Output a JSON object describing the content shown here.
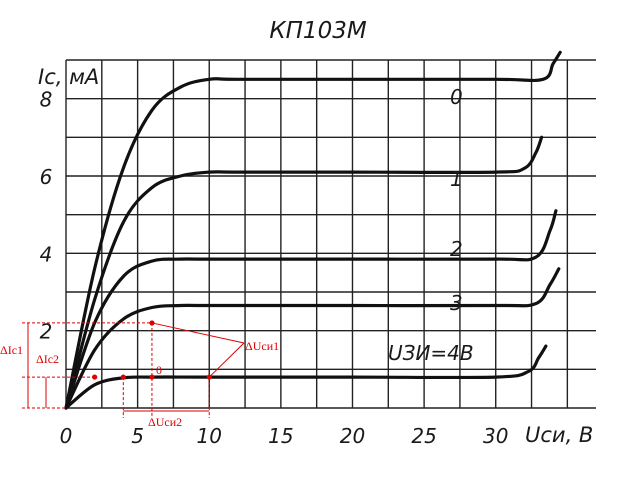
{
  "chart_data": {
    "type": "line",
    "title": "КП103М",
    "ylabel": "Iс, мА",
    "xlabel": "Uси, В",
    "xlim": [
      0,
      37
    ],
    "ylim": [
      0,
      9
    ],
    "x_ticks": [
      0,
      5,
      10,
      15,
      20,
      25,
      30
    ],
    "y_ticks": [
      2,
      4,
      6,
      8
    ],
    "grid": true,
    "series": [
      {
        "name": "0",
        "x": [
          0,
          2,
          4,
          6,
          8,
          10,
          12,
          20,
          30,
          33.3,
          34,
          34.5
        ],
        "values": [
          0,
          3.6,
          6.2,
          7.7,
          8.3,
          8.5,
          8.5,
          8.5,
          8.5,
          8.5,
          8.9,
          9.2
        ]
      },
      {
        "name": "1",
        "x": [
          0,
          2,
          4,
          6,
          8,
          10,
          12,
          20,
          30,
          32,
          32.8,
          33.2
        ],
        "values": [
          0,
          2.8,
          4.8,
          5.7,
          6.0,
          6.1,
          6.1,
          6.1,
          6.1,
          6.2,
          6.6,
          7.0
        ]
      },
      {
        "name": "2",
        "x": [
          0,
          2,
          4,
          6,
          8,
          10,
          20,
          30,
          32.8,
          33.8,
          34.2
        ],
        "values": [
          0,
          2.2,
          3.4,
          3.8,
          3.85,
          3.85,
          3.85,
          3.85,
          3.9,
          4.6,
          5.1
        ]
      },
      {
        "name": "3",
        "x": [
          0,
          2,
          4,
          6,
          8,
          10,
          20,
          30,
          32.8,
          33.8,
          34.4
        ],
        "values": [
          0,
          1.5,
          2.3,
          2.6,
          2.65,
          2.65,
          2.65,
          2.65,
          2.7,
          3.2,
          3.6
        ]
      },
      {
        "name": "4",
        "x": [
          0,
          2,
          4,
          6,
          10,
          20,
          30,
          32.3,
          33,
          33.5
        ],
        "values": [
          0,
          0.6,
          0.78,
          0.8,
          0.8,
          0.8,
          0.8,
          0.95,
          1.3,
          1.6
        ]
      }
    ],
    "curve_labels": [
      "0",
      "1",
      "2",
      "3",
      "UЗИ=4В"
    ],
    "annotations": {
      "labels": [
        "ΔIc1",
        "ΔIc2",
        "ΔUси1",
        "ΔUси2",
        "0"
      ],
      "color": "#e00000",
      "points": [
        [
          2,
          0.8
        ],
        [
          4,
          0.8
        ],
        [
          6,
          0.8
        ],
        [
          10,
          0.8
        ],
        [
          6,
          2.2
        ]
      ],
      "delta_usi2_x": [
        4,
        10
      ],
      "delta_ic1_y": [
        0,
        2.2
      ],
      "delta_ic2_y": [
        0,
        0.8
      ]
    }
  }
}
